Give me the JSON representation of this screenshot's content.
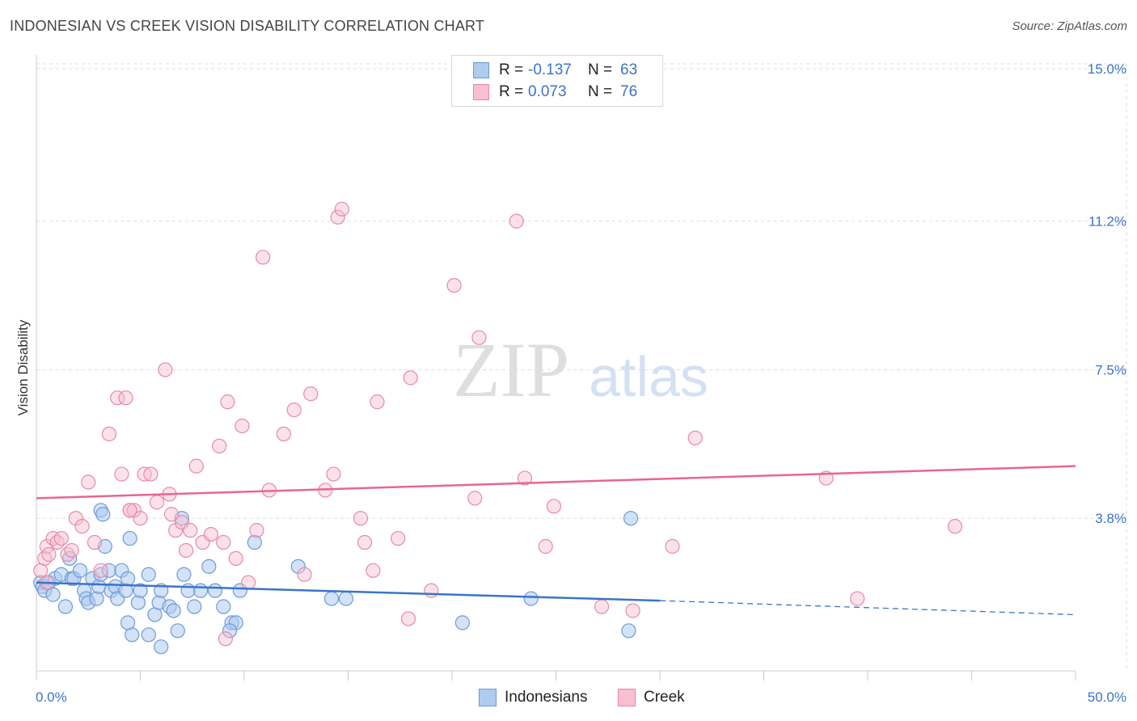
{
  "title": "INDONESIAN VS CREEK VISION DISABILITY CORRELATION CHART",
  "source": "Source: ZipAtlas.com",
  "watermark": {
    "zip": "ZIP",
    "atlas": "atlas"
  },
  "legend": [
    {
      "name": "Indonesians",
      "r_label": "R =",
      "r_value": "-0.137",
      "n_label": "N =",
      "n_value": "63",
      "fill": "#aecbf0",
      "stroke": "#6d9bd8"
    },
    {
      "name": "Creek",
      "r_label": "R =",
      "r_value": "0.073",
      "n_label": "N =",
      "n_value": "76",
      "fill": "#f7bfd0",
      "stroke": "#e68aa7"
    }
  ],
  "colors": {
    "blue": "#3b74c9",
    "blue_fill": "#aecbf0",
    "pink_line": "#e8668f",
    "pink_fill": "#f7bfd0",
    "grid": "#dddddd"
  },
  "chart_data": {
    "type": "scatter",
    "title": "INDONESIAN VS CREEK VISION DISABILITY CORRELATION CHART",
    "xlabel": "",
    "ylabel": "Vision Disability",
    "xlim": [
      0,
      50
    ],
    "ylim": [
      0,
      15.5
    ],
    "x_tick_labels": [
      "0.0%",
      "50.0%"
    ],
    "y_ticks": [
      3.8,
      7.5,
      11.2,
      15.0
    ],
    "y_tick_labels": [
      "3.8%",
      "7.5%",
      "11.2%",
      "15.0%"
    ],
    "grid": true,
    "legend_position": "top-center",
    "series": [
      {
        "name": "Indonesians",
        "points": [
          [
            0.2,
            2.2
          ],
          [
            0.3,
            2.1
          ],
          [
            0.4,
            2.0
          ],
          [
            0.6,
            2.2
          ],
          [
            0.8,
            1.9
          ],
          [
            0.9,
            2.3
          ],
          [
            1.2,
            2.4
          ],
          [
            1.4,
            1.6
          ],
          [
            1.6,
            2.8
          ],
          [
            1.7,
            2.3
          ],
          [
            1.8,
            2.3
          ],
          [
            2.1,
            2.5
          ],
          [
            2.3,
            2.0
          ],
          [
            2.4,
            1.8
          ],
          [
            2.5,
            1.7
          ],
          [
            2.7,
            2.3
          ],
          [
            2.9,
            1.8
          ],
          [
            3.0,
            2.1
          ],
          [
            3.1,
            2.4
          ],
          [
            3.3,
            3.1
          ],
          [
            3.5,
            2.5
          ],
          [
            3.6,
            2.0
          ],
          [
            3.8,
            2.1
          ],
          [
            3.9,
            1.8
          ],
          [
            4.1,
            2.5
          ],
          [
            4.3,
            2.0
          ],
          [
            4.4,
            2.3
          ],
          [
            4.5,
            3.3
          ],
          [
            4.6,
            0.9
          ],
          [
            4.9,
            1.7
          ],
          [
            5.0,
            2.0
          ],
          [
            5.4,
            2.4
          ],
          [
            5.7,
            1.4
          ],
          [
            5.9,
            1.7
          ],
          [
            6.0,
            2.0
          ],
          [
            6.4,
            1.6
          ],
          [
            6.6,
            1.5
          ],
          [
            6.8,
            1.0
          ],
          [
            7.1,
            2.4
          ],
          [
            7.3,
            2.0
          ],
          [
            7.6,
            1.6
          ],
          [
            7.9,
            2.0
          ],
          [
            8.3,
            2.6
          ],
          [
            8.6,
            2.0
          ],
          [
            9.0,
            1.6
          ],
          [
            9.4,
            1.2
          ],
          [
            9.6,
            1.2
          ],
          [
            9.8,
            2.0
          ],
          [
            10.5,
            3.2
          ],
          [
            12.6,
            2.6
          ],
          [
            14.2,
            1.8
          ],
          [
            14.9,
            1.8
          ],
          [
            3.1,
            4.0
          ],
          [
            3.2,
            3.9
          ],
          [
            7.0,
            3.8
          ],
          [
            6.0,
            0.6
          ],
          [
            4.4,
            1.2
          ],
          [
            5.4,
            0.9
          ],
          [
            9.3,
            1.0
          ],
          [
            20.5,
            1.2
          ],
          [
            23.8,
            1.8
          ],
          [
            28.5,
            1.0
          ],
          [
            28.6,
            3.8
          ]
        ]
      },
      {
        "name": "Creek",
        "points": [
          [
            0.2,
            2.5
          ],
          [
            0.4,
            2.8
          ],
          [
            0.5,
            3.1
          ],
          [
            0.6,
            2.9
          ],
          [
            0.8,
            3.3
          ],
          [
            1.0,
            3.2
          ],
          [
            1.2,
            3.3
          ],
          [
            1.5,
            2.9
          ],
          [
            1.7,
            3.0
          ],
          [
            1.9,
            3.8
          ],
          [
            2.2,
            3.6
          ],
          [
            2.5,
            4.7
          ],
          [
            2.8,
            3.2
          ],
          [
            3.1,
            2.5
          ],
          [
            3.5,
            5.9
          ],
          [
            3.9,
            6.8
          ],
          [
            4.1,
            4.9
          ],
          [
            4.3,
            6.8
          ],
          [
            4.5,
            4.0
          ],
          [
            4.7,
            4.0
          ],
          [
            5.0,
            3.8
          ],
          [
            5.2,
            4.9
          ],
          [
            5.5,
            4.9
          ],
          [
            5.8,
            4.2
          ],
          [
            6.2,
            7.5
          ],
          [
            6.4,
            4.4
          ],
          [
            6.7,
            3.5
          ],
          [
            7.0,
            3.7
          ],
          [
            7.4,
            3.5
          ],
          [
            7.7,
            5.1
          ],
          [
            8.0,
            3.2
          ],
          [
            8.4,
            3.4
          ],
          [
            8.8,
            5.6
          ],
          [
            9.0,
            3.2
          ],
          [
            9.2,
            6.7
          ],
          [
            9.6,
            2.8
          ],
          [
            9.9,
            6.1
          ],
          [
            10.2,
            2.2
          ],
          [
            10.6,
            3.5
          ],
          [
            10.9,
            10.3
          ],
          [
            11.2,
            4.5
          ],
          [
            11.9,
            5.9
          ],
          [
            12.4,
            6.5
          ],
          [
            12.9,
            2.4
          ],
          [
            13.2,
            6.9
          ],
          [
            13.9,
            4.5
          ],
          [
            14.3,
            4.9
          ],
          [
            14.5,
            11.3
          ],
          [
            14.7,
            11.5
          ],
          [
            15.6,
            3.8
          ],
          [
            15.8,
            3.2
          ],
          [
            16.2,
            2.5
          ],
          [
            16.4,
            6.7
          ],
          [
            17.4,
            3.3
          ],
          [
            17.9,
            1.3
          ],
          [
            18.0,
            7.3
          ],
          [
            19.0,
            2.0
          ],
          [
            20.1,
            9.6
          ],
          [
            21.1,
            4.3
          ],
          [
            21.3,
            8.3
          ],
          [
            23.1,
            11.2
          ],
          [
            23.5,
            4.8
          ],
          [
            24.5,
            3.1
          ],
          [
            24.9,
            4.1
          ],
          [
            27.2,
            1.6
          ],
          [
            28.7,
            1.5
          ],
          [
            30.6,
            3.1
          ],
          [
            31.7,
            5.8
          ],
          [
            38.0,
            4.8
          ],
          [
            39.5,
            1.8
          ],
          [
            44.2,
            3.6
          ],
          [
            0.5,
            2.2
          ],
          [
            7.2,
            3.0
          ],
          [
            6.5,
            3.9
          ],
          [
            4.5,
            4.0
          ],
          [
            9.1,
            0.8
          ]
        ]
      }
    ],
    "trend_lines": [
      {
        "series": "Indonesians",
        "x": [
          0,
          30
        ],
        "y": [
          2.2,
          1.75
        ],
        "dashed_extension": {
          "x": [
            30,
            50
          ],
          "y": [
            1.75,
            1.4
          ]
        }
      },
      {
        "series": "Creek",
        "x": [
          0,
          50
        ],
        "y": [
          4.3,
          5.1
        ]
      }
    ]
  }
}
